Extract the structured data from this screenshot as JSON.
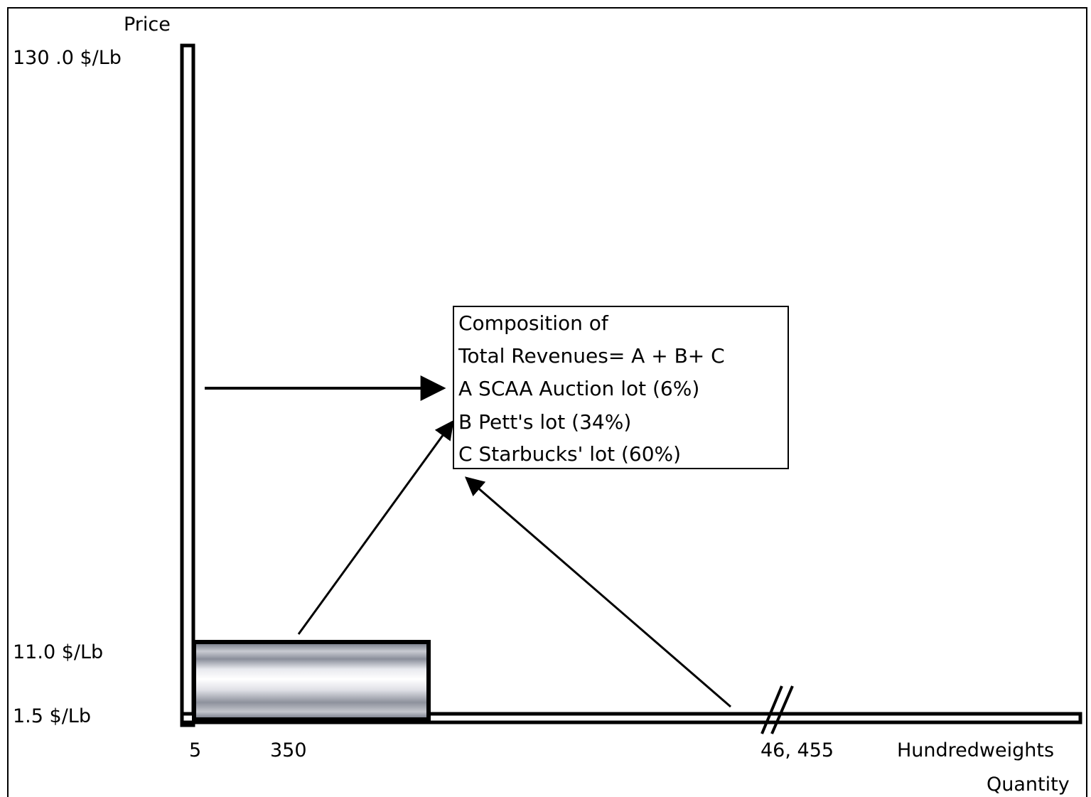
{
  "axis": {
    "y_title": "Price",
    "x_title_line1": "Hundredweights",
    "x_title_line2": "Quantity"
  },
  "y_ticks": [
    "130 .0 $/Lb",
    "11.0 $/Lb",
    "1.5 $/Lb"
  ],
  "x_ticks": [
    "5",
    "350",
    "46, 455"
  ],
  "legend": {
    "title_line1": "Composition of",
    "title_line2": "Total Revenues= A + B+ C",
    "items": [
      "A SCAA Auction lot (6%)",
      "B Pett's lot (34%)",
      "C Starbucks' lot (60%)"
    ]
  },
  "colors": {
    "line": "#000000",
    "bar_light": "#ffffff",
    "bar_dark": "#5a5f6e"
  }
}
